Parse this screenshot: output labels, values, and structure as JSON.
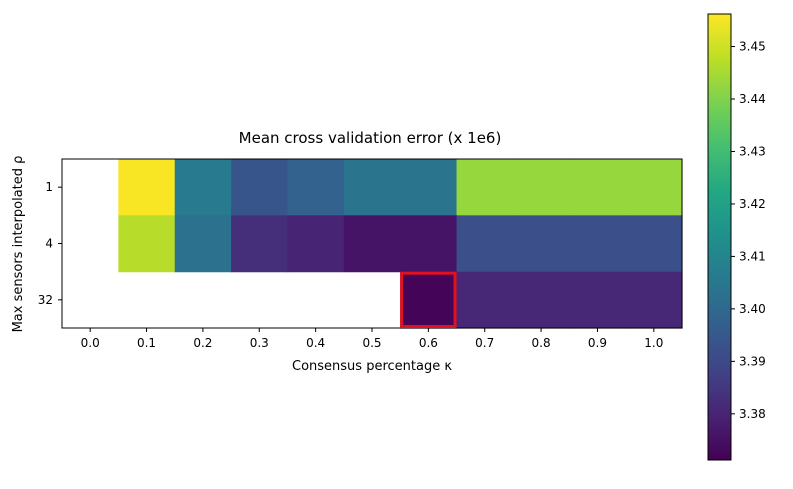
{
  "chart_data": {
    "type": "heatmap",
    "title": "Mean cross validation error (x 1e6)",
    "xlabel": "Consensus percentage κ",
    "ylabel": "Max sensors interpolated ρ",
    "x_ticks": [
      "0.0",
      "0.1",
      "0.2",
      "0.3",
      "0.4",
      "0.5",
      "0.6",
      "0.7",
      "0.8",
      "0.9",
      "1.0"
    ],
    "y_ticks": [
      "1",
      "4",
      "32"
    ],
    "x_values": [
      0.0,
      0.1,
      0.2,
      0.3,
      0.4,
      0.5,
      0.6,
      0.7,
      0.8,
      0.9,
      1.0
    ],
    "y_values": [
      1,
      4,
      32
    ],
    "values": [
      [
        null,
        3.4555,
        3.406,
        3.394,
        3.398,
        3.404,
        3.404,
        3.443,
        3.443,
        3.443,
        3.443
      ],
      [
        null,
        3.447,
        3.403,
        3.383,
        3.38,
        3.376,
        3.376,
        3.392,
        3.392,
        3.392,
        3.392
      ],
      [
        null,
        null,
        null,
        null,
        null,
        null,
        3.372,
        3.381,
        3.381,
        3.381,
        3.381
      ]
    ],
    "highlight": {
      "x": 0.6,
      "y": 32,
      "color": "#e3101e"
    },
    "colormap": "viridis",
    "colorbar": {
      "min": 3.3712,
      "max": 3.4562,
      "ticks": [
        "3.38",
        "3.39",
        "3.40",
        "3.41",
        "3.42",
        "3.43",
        "3.44",
        "3.45"
      ]
    }
  }
}
